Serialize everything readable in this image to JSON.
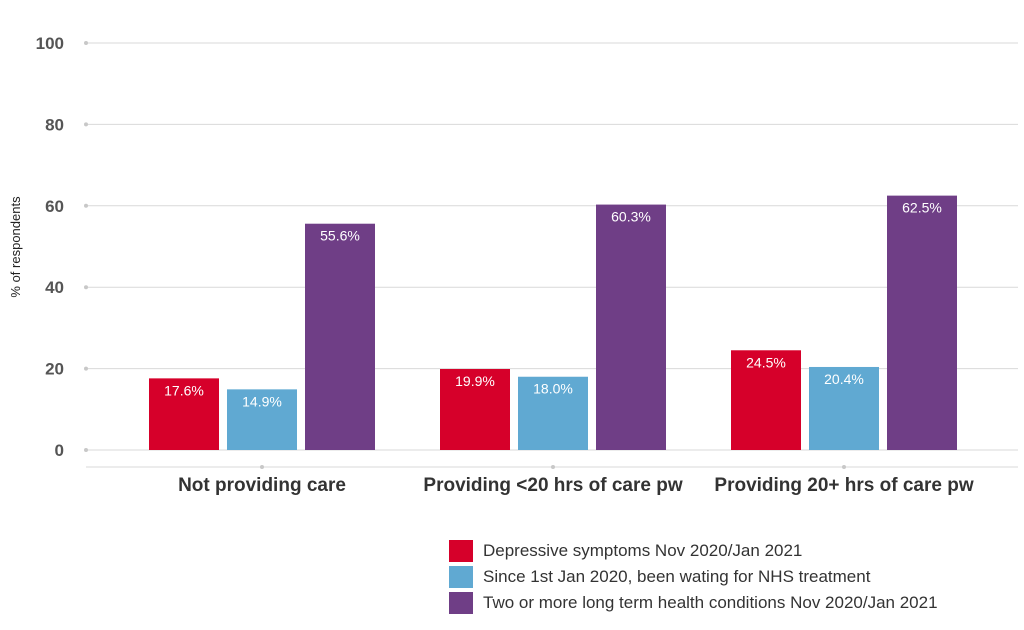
{
  "chart_data": {
    "type": "bar",
    "title": "",
    "xlabel": "",
    "ylabel": "% of respondents",
    "ylim": [
      0,
      100
    ],
    "yticks": [
      0,
      20,
      40,
      60,
      80,
      100
    ],
    "grid": true,
    "legend_position": "bottom-right",
    "categories": [
      "Not providing care",
      "Providing <20 hrs of care pw",
      "Providing 20+ hrs of care pw"
    ],
    "series": [
      {
        "name": "Depressive symptoms Nov 2020/Jan 2021",
        "color": "#d6002a",
        "values": [
          17.6,
          19.9,
          24.5
        ],
        "labels": [
          "17.6%",
          "19.9%",
          "24.5%"
        ]
      },
      {
        "name": "Since 1st Jan 2020, been wating for NHS treatment",
        "color": "#60a9d2",
        "values": [
          14.9,
          18.0,
          20.4
        ],
        "labels": [
          "14.9%",
          "18.0%",
          "20.4%"
        ]
      },
      {
        "name": "Two or more long term health conditions Nov 2020/Jan 2021",
        "color": "#6f3e86",
        "values": [
          55.6,
          60.3,
          62.5
        ],
        "labels": [
          "55.6%",
          "60.3%",
          "62.5%"
        ]
      }
    ]
  }
}
